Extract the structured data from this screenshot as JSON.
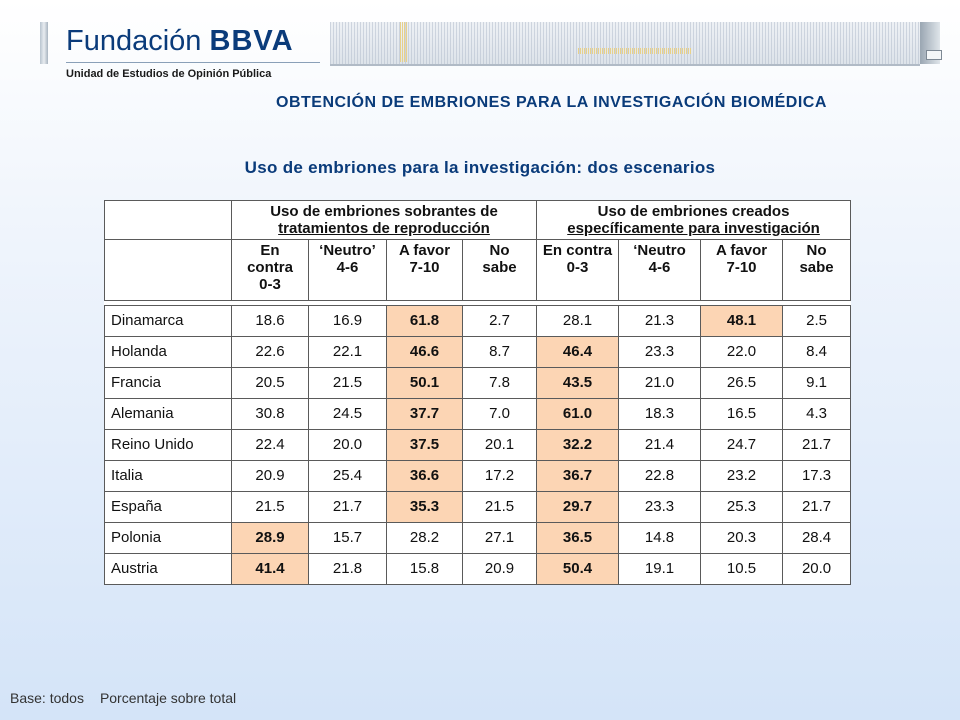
{
  "header": {
    "brand_light": "Fundación ",
    "brand_bold": "BBVA",
    "unit": "Unidad de Estudios de Opinión Pública"
  },
  "main_title": "OBTENCIÓN DE EMBRIONES PARA LA INVESTIGACIÓN BIOMÉDICA",
  "table_title": "Uso de embriones para la investigación:  dos escenarios",
  "table": {
    "group1_line1": "Uso de embriones sobrantes de",
    "group1_line2": "tratamientos de reproducción",
    "group2_line1": "Uso de embriones creados",
    "group2_line2": "específicamente para investigación",
    "sub": {
      "c1": [
        "En",
        "contra",
        "0-3"
      ],
      "c2": [
        "‘Neutro’",
        "4-6"
      ],
      "c3": [
        "A favor",
        "7-10"
      ],
      "c4": [
        "No",
        "sabe"
      ],
      "c5": [
        "En contra",
        "0-3"
      ],
      "c6": [
        "‘Neutro",
        "4-6"
      ],
      "c7": [
        "A favor",
        "7-10"
      ],
      "c8": [
        "No",
        "sabe"
      ]
    },
    "rows": [
      {
        "country": "Dinamarca",
        "v": [
          "18.6",
          "16.9",
          "61.8",
          "2.7",
          "28.1",
          "21.3",
          "48.1",
          "2.5"
        ]
      },
      {
        "country": "Holanda",
        "v": [
          "22.6",
          "22.1",
          "46.6",
          "8.7",
          "46.4",
          "23.3",
          "22.0",
          "8.4"
        ]
      },
      {
        "country": "Francia",
        "v": [
          "20.5",
          "21.5",
          "50.1",
          "7.8",
          "43.5",
          "21.0",
          "26.5",
          "9.1"
        ]
      },
      {
        "country": "Alemania",
        "v": [
          "30.8",
          "24.5",
          "37.7",
          "7.0",
          "61.0",
          "18.3",
          "16.5",
          "4.3"
        ]
      },
      {
        "country": "Reino Unido",
        "v": [
          "22.4",
          "20.0",
          "37.5",
          "20.1",
          "32.2",
          "21.4",
          "24.7",
          "21.7"
        ]
      },
      {
        "country": "Italia",
        "v": [
          "20.9",
          "25.4",
          "36.6",
          "17.2",
          "36.7",
          "22.8",
          "23.2",
          "17.3"
        ]
      },
      {
        "country": "España",
        "v": [
          "21.5",
          "21.7",
          "35.3",
          "21.5",
          "29.7",
          "23.3",
          "25.3",
          "21.7"
        ]
      },
      {
        "country": "Polonia",
        "v": [
          "28.9",
          "15.7",
          "28.2",
          "27.1",
          "36.5",
          "14.8",
          "20.3",
          "28.4"
        ]
      },
      {
        "country": "Austria",
        "v": [
          "41.4",
          "21.8",
          "15.8",
          "20.9",
          "50.4",
          "19.1",
          "10.5",
          "20.0"
        ]
      }
    ],
    "highlight_color": "#fcd5b4"
  },
  "footer": {
    "base": "Base: todos",
    "pct": "Porcentaje sobre total"
  }
}
